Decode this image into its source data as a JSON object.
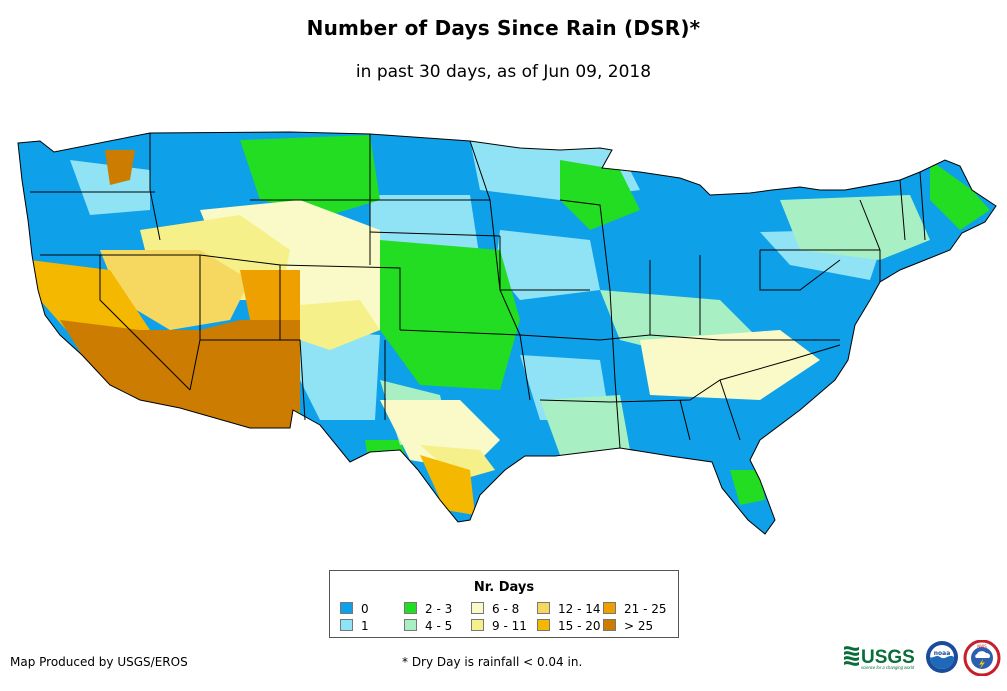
{
  "title": "Number of Days Since Rain (DSR)*",
  "subtitle": "in past 30 days, as of Jun 09, 2018",
  "legend": {
    "title": "Nr. Days",
    "items": [
      {
        "label": "0",
        "color": "#0ea0e8"
      },
      {
        "label": "1",
        "color": "#8fe3f5"
      },
      {
        "label": "2 - 3",
        "color": "#22dd22"
      },
      {
        "label": "4 - 5",
        "color": "#a8efc4"
      },
      {
        "label": "6 - 8",
        "color": "#fafac8"
      },
      {
        "label": "9 - 11",
        "color": "#f5f08a"
      },
      {
        "label": "12 - 14",
        "color": "#f6d860"
      },
      {
        "label": "15 - 20",
        "color": "#f4b800"
      },
      {
        "label": "21 - 25",
        "color": "#eda000"
      },
      {
        "label": "> 25",
        "color": "#cc7c00"
      }
    ]
  },
  "credit": "Map Produced by USGS/EROS",
  "footnote": "* Dry Day is rainfall < 0.04 in.",
  "logos": {
    "usgs_text": "USGS",
    "usgs_tagline": "science for a changing world",
    "noaa_text": "noaa",
    "nws_text": "NWS"
  }
}
